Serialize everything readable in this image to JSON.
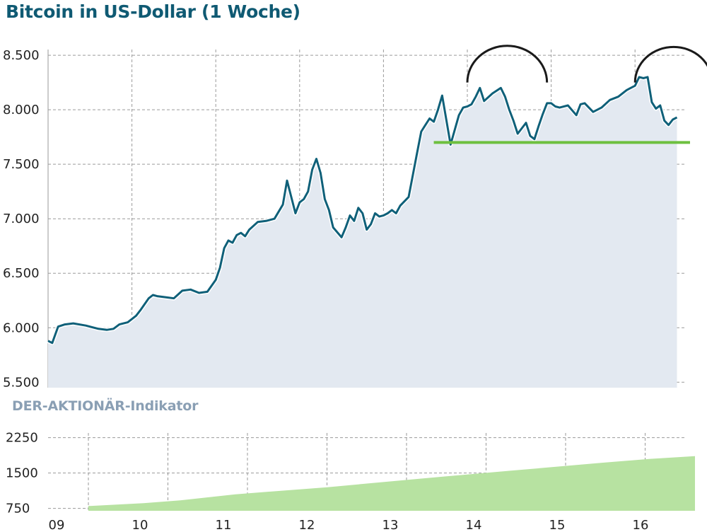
{
  "header": {
    "title": "Bitcoin in US-Dollar (1 Woche)",
    "indicator_title": "DER-AKTIONÄR-Indikator"
  },
  "colors": {
    "price_line": "#0f6079",
    "price_area": "#e3e9f1",
    "support_line": "#6ec040",
    "arc": "#1a1a1a",
    "indicator_area": "#b7e2a1",
    "title": "#0f5a73",
    "subtitle": "#8a9fb4"
  },
  "chart_data": [
    {
      "type": "line",
      "title": "Bitcoin in US-Dollar (1 Woche)",
      "x_tick_labels": [
        "09",
        "10",
        "11",
        "12",
        "13",
        "14",
        "15",
        "16"
      ],
      "y_tick_labels": [
        "5.500",
        "6.000",
        "6.500",
        "7.000",
        "7.500",
        "8.000",
        "8.500"
      ],
      "ylim": [
        5450,
        8650
      ],
      "xlim": [
        9.0,
        16.9
      ],
      "grid": true,
      "series": [
        {
          "x": [
            9.0,
            9.05,
            9.12,
            9.2,
            9.3,
            9.45,
            9.6,
            9.7,
            9.78,
            9.85,
            9.95,
            10.05,
            10.1,
            10.2,
            10.25,
            10.3,
            10.4,
            10.5,
            10.6,
            10.7,
            10.8,
            10.9,
            11.0,
            11.05,
            11.1,
            11.15,
            11.2,
            11.25,
            11.3,
            11.35,
            11.4,
            11.5,
            11.6,
            11.7,
            11.8,
            11.85,
            11.95,
            12.0,
            12.05,
            12.1,
            12.15,
            12.2,
            12.25,
            12.3,
            12.35,
            12.4,
            12.5,
            12.55,
            12.6,
            12.65,
            12.7,
            12.75,
            12.8,
            12.85,
            12.9,
            12.95,
            13.0,
            13.05,
            13.1,
            13.15,
            13.2,
            13.3,
            13.4,
            13.45,
            13.5,
            13.55,
            13.6,
            13.65,
            13.7,
            13.8,
            13.9,
            13.95,
            14.0,
            14.05,
            14.1,
            14.15,
            14.2,
            14.3,
            14.4,
            14.45,
            14.5,
            14.55,
            14.6,
            14.7,
            14.75,
            14.8,
            14.85,
            14.9,
            14.95,
            15.0,
            15.05,
            15.1,
            15.2,
            15.3,
            15.35,
            15.4,
            15.5,
            15.6,
            15.7,
            15.8,
            15.9,
            16.0,
            16.05,
            16.1,
            16.15,
            16.2,
            16.25,
            16.3,
            16.35,
            16.4,
            16.45,
            16.5
          ],
          "values": [
            5880,
            5860,
            6010,
            6030,
            6040,
            6020,
            5990,
            5980,
            5990,
            6030,
            6050,
            6110,
            6160,
            6270,
            6300,
            6290,
            6280,
            6270,
            6340,
            6350,
            6320,
            6330,
            6440,
            6550,
            6730,
            6800,
            6780,
            6850,
            6870,
            6840,
            6900,
            6970,
            6980,
            7000,
            7130,
            7350,
            7050,
            7150,
            7180,
            7250,
            7450,
            7550,
            7420,
            7180,
            7080,
            6920,
            6830,
            6920,
            7030,
            6980,
            7100,
            7050,
            6900,
            6950,
            7050,
            7020,
            7030,
            7050,
            7080,
            7050,
            7120,
            7200,
            7600,
            7800,
            7860,
            7920,
            7890,
            8000,
            8130,
            7680,
            7950,
            8020,
            8030,
            8050,
            8120,
            8200,
            8080,
            8150,
            8200,
            8120,
            8000,
            7900,
            7780,
            7880,
            7760,
            7730,
            7850,
            7960,
            8060,
            8060,
            8030,
            8020,
            8040,
            7950,
            8050,
            8060,
            7980,
            8020,
            8090,
            8120,
            8180,
            8220,
            8300,
            8290,
            8300,
            8070,
            8010,
            8040,
            7900,
            7860,
            7910,
            7930
          ]
        }
      ],
      "annotations": {
        "support_level": 7700,
        "arcs": [
          {
            "x_start": 14.0,
            "x_end": 14.95,
            "y_base": 8250
          },
          {
            "x_start": 16.0,
            "x_end": 16.92,
            "y_base": 8250
          }
        ]
      }
    },
    {
      "type": "area",
      "title": "DER-AKTIONÄR-Indikator",
      "x_tick_labels": [
        "09",
        "10",
        "11",
        "12",
        "13",
        "14",
        "15",
        "16"
      ],
      "y_tick_labels": [
        "750",
        "1500",
        "2250"
      ],
      "ylim": [
        700,
        2350
      ],
      "xlim": [
        9.0,
        16.9
      ],
      "grid": true,
      "series": [
        {
          "x": [
            9.4,
            10.0,
            10.4,
            11.0,
            12.0,
            13.0,
            14.0,
            15.0,
            15.5,
            16.0
          ],
          "values": [
            800,
            860,
            920,
            1050,
            1200,
            1380,
            1550,
            1720,
            1800,
            1860
          ]
        }
      ]
    }
  ]
}
